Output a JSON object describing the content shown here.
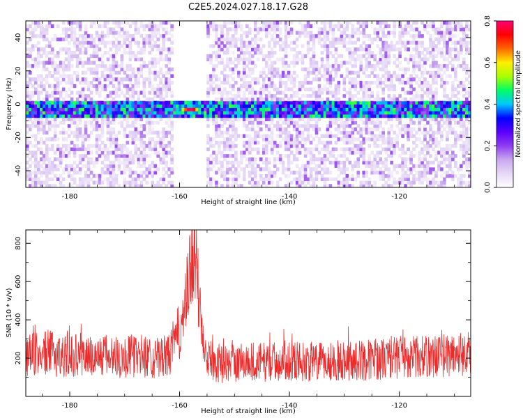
{
  "title": "C2E5.2024.027.18.17.G28",
  "colors": {
    "line": "#ee2a2a",
    "axis": "#000000"
  },
  "chart_data": [
    {
      "type": "heatmap",
      "title": "C2E5.2024.027.18.17.G28",
      "xlabel": "Height of straight line (km)",
      "ylabel": "Frequency (Hz)",
      "xlim": [
        -188,
        -107
      ],
      "ylim": [
        -50,
        50
      ],
      "x_ticks": [
        -180,
        -160,
        -140,
        -120
      ],
      "x_tick_labels": [
        "-180",
        "-160",
        "-140",
        "-120"
      ],
      "y_ticks": [
        -40,
        -20,
        0,
        20,
        40
      ],
      "y_tick_labels": [
        "-40",
        "-20",
        "0",
        "20",
        "40"
      ],
      "colorbar": {
        "label": "Normalized spectral amplitude",
        "range": [
          0,
          0.8
        ],
        "ticks": [
          0,
          0.2,
          0.4,
          0.6,
          0.8
        ],
        "tick_labels": [
          "0.0",
          "0.2",
          "0.4",
          "0.6",
          "0.8"
        ],
        "colormap": [
          "#ffffff",
          "#e6d8f6",
          "#c9a8f0",
          "#8f3cf0",
          "#5a00ff",
          "#0000ff",
          "#00c8ff",
          "#00ff66",
          "#aaff00",
          "#ffee00",
          "#ff6600",
          "#ff0000",
          "#ff0077"
        ]
      },
      "signal_band": {
        "frequency_center": -3,
        "frequency_halfwidth": 3
      },
      "signal_peak": {
        "height": -158,
        "frequency": -3,
        "amplitude": 0.8
      },
      "signal_gap": {
        "from": -161,
        "to": -155
      }
    },
    {
      "type": "line",
      "title": "",
      "xlabel": "Height of straight line (km)",
      "ylabel": "SNR (10 * v/v)",
      "xlim": [
        -188,
        -107
      ],
      "ylim": [
        0,
        870
      ],
      "x_ticks": [
        -180,
        -160,
        -140,
        -120
      ],
      "x_tick_labels": [
        "-180",
        "-160",
        "-140",
        "-120"
      ],
      "y_ticks": [
        200,
        400,
        600,
        800
      ],
      "y_tick_labels": [
        "200",
        "400",
        "600",
        "800"
      ],
      "series": [
        {
          "color": "#ee2a2a",
          "x": [
            -188,
            -186,
            -184,
            -182,
            -180,
            -178,
            -176,
            -174,
            -172,
            -170,
            -168,
            -166,
            -164,
            -162,
            -161,
            -160,
            -159,
            -158.5,
            -158,
            -157.5,
            -157,
            -156.5,
            -156,
            -155,
            -154,
            -152,
            -150,
            -148,
            -146,
            -144,
            -142,
            -140,
            -138,
            -136,
            -134,
            -132,
            -130,
            -128,
            -126,
            -124,
            -122,
            -120,
            -118,
            -116,
            -114,
            -112,
            -110,
            -108,
            -107
          ],
          "y": [
            210,
            220,
            230,
            215,
            210,
            220,
            205,
            215,
            210,
            205,
            215,
            210,
            200,
            210,
            280,
            340,
            450,
            560,
            650,
            760,
            680,
            520,
            380,
            230,
            180,
            170,
            175,
            185,
            180,
            180,
            185,
            190,
            185,
            175,
            180,
            185,
            190,
            185,
            190,
            195,
            200,
            205,
            210,
            205,
            210,
            215,
            220,
            225,
            230
          ],
          "noise_amplitude": 140
        }
      ]
    }
  ]
}
